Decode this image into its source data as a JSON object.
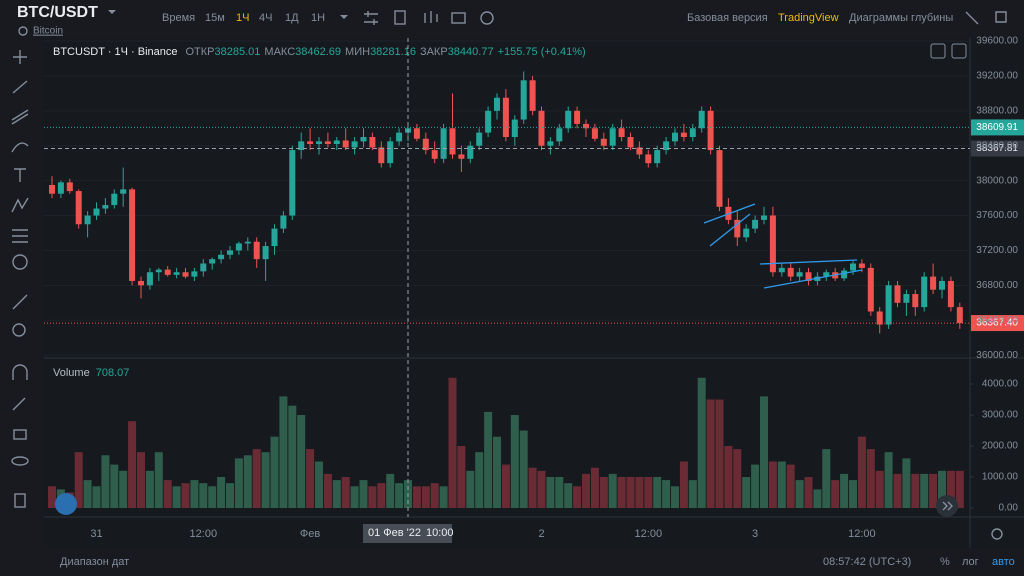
{
  "header": {
    "symbol": "BTC/USDT",
    "name": "Bitcoin",
    "intervals_label": "Время",
    "intervals": [
      "15м",
      "1Ч",
      "4Ч",
      "1Д",
      "1Н"
    ],
    "views": [
      "Базовая версия",
      "TradingView",
      "Диаграммы глубины"
    ]
  },
  "chart_data": {
    "type": "candlestick",
    "legend": {
      "symbol": "BTCUSDT · 1Ч · Binance",
      "open_label": "ОТКР",
      "open": 38285.01,
      "high_label": "МАКС",
      "high": 38462.69,
      "low_label": "МИН",
      "low": 38281.16,
      "close_label": "ЗАКР",
      "close": 38440.77,
      "change": "+155.75 (+0.41%)"
    },
    "categories": [
      null,
      null,
      null,
      null,
      null,
      "31",
      null,
      null,
      null,
      null,
      null,
      null,
      null,
      null,
      null,
      null,
      null,
      "12:00",
      null,
      null,
      null,
      null,
      null,
      null,
      null,
      null,
      null,
      null,
      null,
      "Фев",
      null,
      null,
      null,
      null,
      null,
      null,
      null,
      null,
      null,
      null,
      null,
      null,
      null,
      null,
      null,
      null,
      null,
      null,
      null,
      null,
      null,
      null,
      null,
      null,
      null,
      "2",
      null,
      null,
      null,
      null,
      null,
      null,
      null,
      null,
      null,
      null,
      null,
      "12:00",
      null,
      null,
      null,
      null,
      null,
      null,
      null,
      null,
      null,
      null,
      null,
      "3",
      null,
      null,
      null,
      null,
      null,
      null,
      null,
      null,
      null,
      null,
      null,
      "12:00",
      null,
      null,
      null,
      null,
      null,
      null,
      null,
      null,
      null,
      null,
      null
    ],
    "open": [
      37950,
      37850,
      37980,
      37880,
      37500,
      37600,
      37680,
      37720,
      37850,
      37900,
      36850,
      36800,
      36950,
      36980,
      36920,
      36950,
      36900,
      36960,
      37050,
      37100,
      37150,
      37200,
      37280,
      37300,
      37100,
      37250,
      37450,
      37600,
      38350,
      38450,
      38420,
      38450,
      38420,
      38460,
      38380,
      38450,
      38500,
      38380,
      38200,
      38450,
      38550,
      38600,
      38480,
      38350,
      38250,
      38600,
      38300,
      38250,
      38400,
      38550,
      38800,
      38950,
      38500,
      38700,
      39150,
      38800,
      38400,
      38450,
      38600,
      38800,
      38650,
      38600,
      38480,
      38400,
      38600,
      38500,
      38380,
      38300,
      38200,
      38350,
      38450,
      38550,
      38500,
      38600,
      38800,
      38350,
      37700,
      37550,
      37350,
      37450,
      37550,
      37600,
      36950,
      37000,
      36900,
      36950,
      36850,
      36900,
      36950,
      36880,
      36970,
      37050,
      37000,
      36500,
      36350,
      36800,
      36600,
      36700,
      36550,
      36900,
      36750,
      36850,
      36550
    ],
    "high": [
      38050,
      38000,
      38020,
      37900,
      37650,
      37750,
      37800,
      37900,
      38150,
      37920,
      36900,
      37000,
      37000,
      37020,
      37000,
      37000,
      37000,
      37100,
      37120,
      37200,
      37250,
      37300,
      37350,
      37350,
      37300,
      37500,
      37650,
      38400,
      38550,
      38600,
      38500,
      38550,
      38500,
      38600,
      38500,
      38600,
      38550,
      38450,
      38500,
      38600,
      38650,
      38650,
      38550,
      38450,
      38650,
      39000,
      38400,
      38450,
      38600,
      38850,
      39000,
      39050,
      38750,
      39250,
      39200,
      38850,
      38500,
      38650,
      38850,
      38850,
      38700,
      38650,
      38550,
      38650,
      38700,
      38550,
      38450,
      38350,
      38400,
      38500,
      38600,
      38650,
      38650,
      38850,
      38850,
      38400,
      37800,
      37650,
      37500,
      37600,
      37700,
      37700,
      37050,
      37050,
      37000,
      37000,
      36950,
      36980,
      37000,
      37000,
      37080,
      37100,
      37050,
      36550,
      36850,
      36850,
      36750,
      36750,
      36950,
      37050,
      36900,
      36900,
      36600
    ],
    "low": [
      37800,
      37800,
      37850,
      37450,
      37350,
      37550,
      37620,
      37680,
      37700,
      36800,
      36650,
      36750,
      36850,
      36900,
      36880,
      36880,
      36850,
      36900,
      36980,
      37050,
      37100,
      37150,
      37200,
      37000,
      36850,
      37150,
      37400,
      37550,
      38250,
      38350,
      38300,
      38380,
      38350,
      38350,
      38300,
      38380,
      38350,
      38150,
      38150,
      38400,
      38450,
      38450,
      38300,
      38200,
      38200,
      38250,
      38100,
      38200,
      38350,
      38500,
      38700,
      38450,
      38400,
      38650,
      38750,
      38350,
      38300,
      38400,
      38550,
      38600,
      38500,
      38450,
      38350,
      38350,
      38450,
      38350,
      38250,
      38150,
      38150,
      38300,
      38400,
      38450,
      38450,
      38550,
      38300,
      37650,
      37500,
      37250,
      37300,
      37400,
      37500,
      36900,
      36900,
      36850,
      36850,
      36800,
      36800,
      36850,
      36850,
      36850,
      36920,
      36950,
      36450,
      36250,
      36300,
      36550,
      36450,
      36450,
      36500,
      36700,
      36650,
      36500,
      36300
    ],
    "close": [
      37850,
      37980,
      37880,
      37500,
      37600,
      37680,
      37720,
      37850,
      37900,
      36850,
      36800,
      36950,
      36980,
      36920,
      36950,
      36900,
      36960,
      37050,
      37100,
      37150,
      37200,
      37280,
      37300,
      37100,
      37250,
      37450,
      37600,
      38350,
      38450,
      38420,
      38450,
      38420,
      38460,
      38380,
      38450,
      38500,
      38380,
      38200,
      38450,
      38550,
      38600,
      38480,
      38350,
      38250,
      38600,
      38300,
      38250,
      38400,
      38550,
      38800,
      38950,
      38500,
      38700,
      39150,
      38800,
      38400,
      38450,
      38600,
      38800,
      38650,
      38600,
      38480,
      38400,
      38600,
      38500,
      38380,
      38300,
      38200,
      38350,
      38450,
      38550,
      38500,
      38600,
      38800,
      38350,
      37700,
      37550,
      37350,
      37450,
      37550,
      37600,
      36950,
      37000,
      36900,
      36950,
      36850,
      36900,
      36950,
      36880,
      36970,
      37050,
      37000,
      36500,
      36350,
      36800,
      36600,
      36700,
      36550,
      36900,
      36750,
      36850,
      36550,
      36367.4
    ],
    "up_color": "#26a69a",
    "down_color": "#ef5350",
    "ylim": [
      35967,
      39692
    ],
    "yticks": [
      {
        "value": 36000,
        "label": "36000.00"
      },
      {
        "value": 36400,
        "label": "36400.00"
      },
      {
        "value": 36800,
        "label": "36800.00"
      },
      {
        "value": 37200,
        "label": "37200.00"
      },
      {
        "value": 37600,
        "label": "37600.00"
      },
      {
        "value": 38000,
        "label": "38000.00"
      },
      {
        "value": 38400,
        "label": "38400.00"
      },
      {
        "value": 38800,
        "label": "38800.00"
      },
      {
        "value": 39200,
        "label": "39200.00"
      },
      {
        "value": 39600,
        "label": "39600.00"
      }
    ],
    "grid": true,
    "price_line": 38609.91,
    "crosshair_price": 38367.81,
    "crosshair_date": "01 Фев '22",
    "crosshair_time": "10:00",
    "last_price": {
      "value": 36367.4,
      "label": "36367.40"
    },
    "volume": {
      "label": "Volume",
      "value": 708.07,
      "up_color": "#2f5e4c",
      "down_color": "#6a2b35",
      "values": [
        700,
        600,
        500,
        1800,
        900,
        700,
        1700,
        1400,
        1200,
        2800,
        1800,
        1200,
        1800,
        900,
        700,
        800,
        900,
        800,
        700,
        1000,
        800,
        1600,
        1700,
        1900,
        1800,
        2300,
        3600,
        3300,
        3000,
        1900,
        1500,
        1100,
        900,
        1000,
        700,
        900,
        700,
        800,
        1100,
        800,
        900,
        700,
        700,
        800,
        700,
        4200,
        2000,
        1200,
        1800,
        3100,
        2300,
        1400,
        3000,
        2500,
        1300,
        1200,
        1000,
        1000,
        800,
        700,
        1100,
        1300,
        1000,
        1100,
        1000,
        1000,
        1000,
        1000,
        1000,
        900,
        700,
        1500,
        900,
        4200,
        3500,
        3500,
        2000,
        1900,
        1000,
        1400,
        3600,
        1500,
        1500,
        1400,
        900,
        1000,
        600,
        1900,
        900,
        1100,
        900,
        2300,
        1900,
        1200,
        1800,
        1100,
        1600,
        1100,
        1100,
        1100,
        1200,
        1200,
        1200
      ],
      "ylim": [
        -226,
        4774
      ],
      "yticks": [
        {
          "value": 0,
          "label": "0.00"
        },
        {
          "value": 1000,
          "label": "1000.00"
        },
        {
          "value": 2000,
          "label": "2000.00"
        },
        {
          "value": 3000,
          "label": "3000.00"
        },
        {
          "value": 4000,
          "label": "4000.00"
        }
      ]
    }
  },
  "footer": {
    "range": "Диапазон дат",
    "clock": "08:57:42 (UTC+3)",
    "percent": "%",
    "log": "лог",
    "auto": "авто"
  }
}
